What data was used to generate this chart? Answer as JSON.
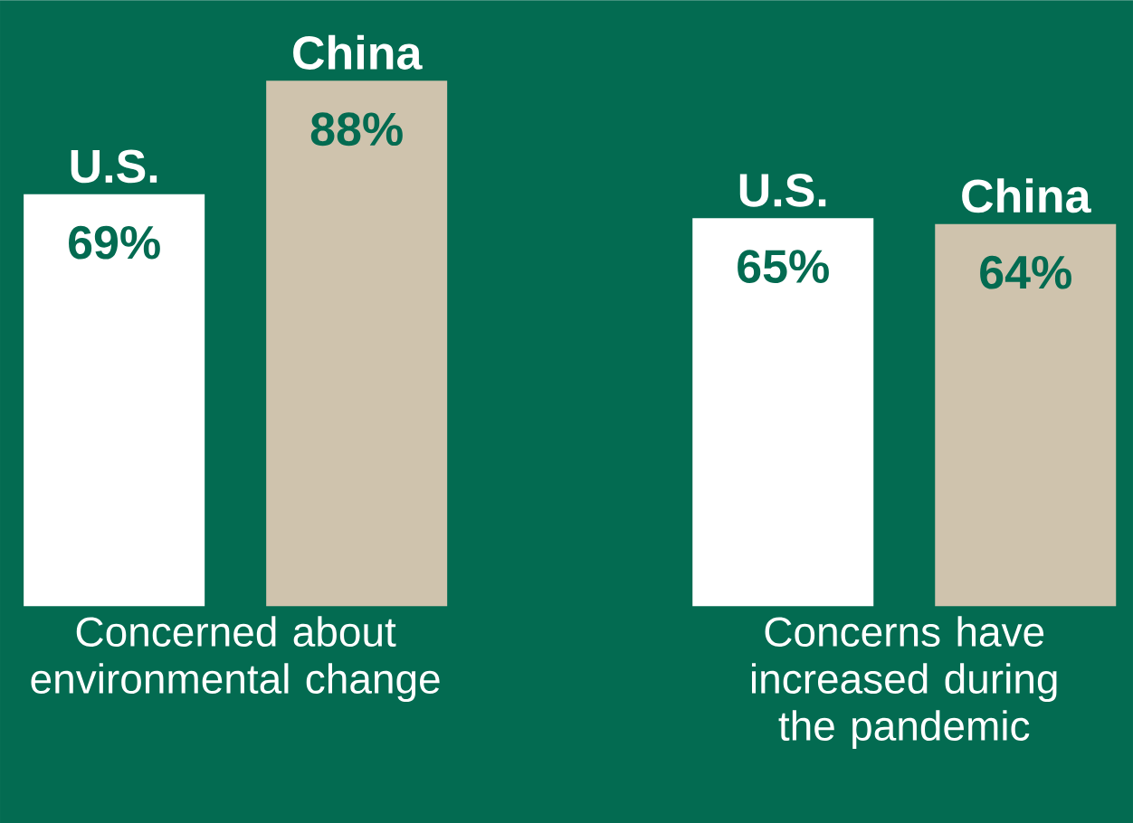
{
  "chart_data": {
    "type": "bar",
    "categories": [
      "Concerned about environmental change",
      "Concerns have increased during the pandemic"
    ],
    "series": [
      {
        "name": "U.S.",
        "color": "#ffffff",
        "values": [
          69,
          65
        ],
        "value_labels": [
          "69%",
          "65%"
        ]
      },
      {
        "name": "China",
        "color": "#cfc3ad",
        "values": [
          88,
          64
        ],
        "value_labels": [
          "88%",
          "64%"
        ]
      }
    ],
    "ylim": [
      0,
      101.5
    ]
  }
}
